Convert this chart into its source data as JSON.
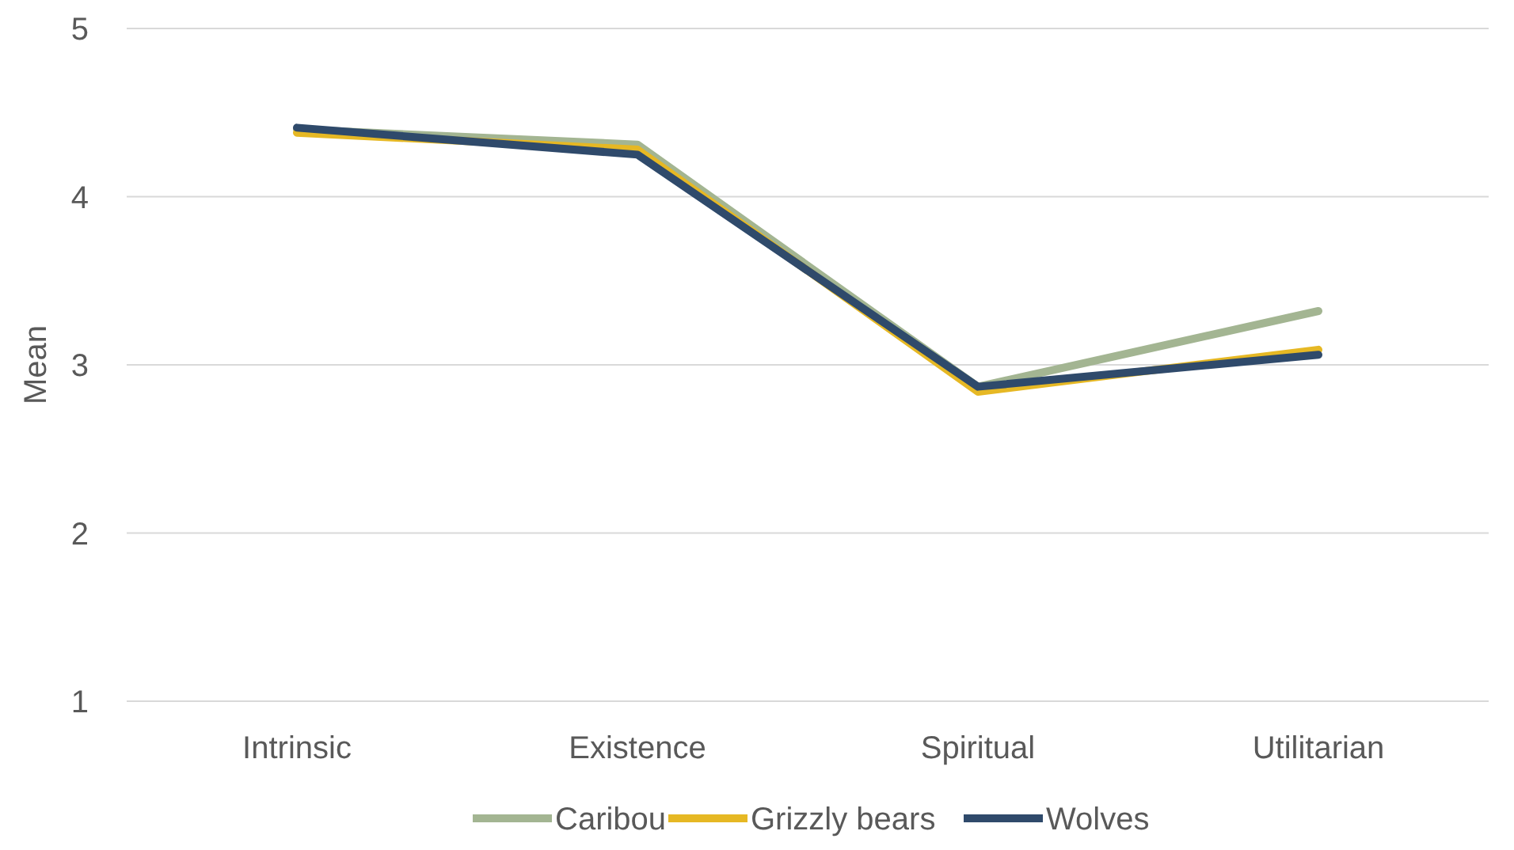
{
  "chart_data": {
    "type": "line",
    "ylabel": "Mean",
    "categories": [
      "Intrinsic",
      "Existence",
      "Spiritual",
      "Utilitarian"
    ],
    "series": [
      {
        "name": "Caribou",
        "color": "#a3b592",
        "values": [
          4.4,
          4.31,
          2.87,
          3.32
        ]
      },
      {
        "name": "Grizzly bears",
        "color": "#e6b824",
        "values": [
          4.38,
          4.28,
          2.84,
          3.09
        ]
      },
      {
        "name": "Wolves",
        "color": "#2f4a6b",
        "values": [
          4.41,
          4.25,
          2.87,
          3.06
        ]
      }
    ],
    "ylim": [
      1,
      5
    ],
    "yticks": [
      1,
      2,
      3,
      4,
      5
    ],
    "grid": "y",
    "legend": "bottom",
    "marker": "none",
    "line_style": "solid"
  }
}
